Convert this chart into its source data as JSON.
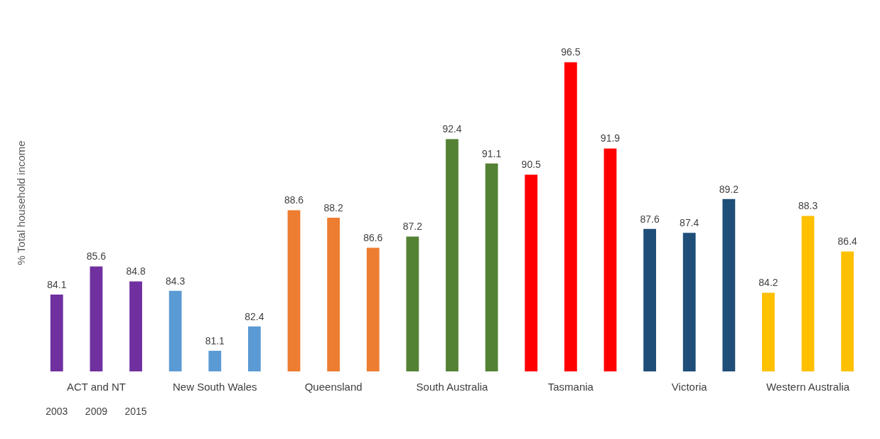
{
  "chart_data": {
    "type": "bar",
    "ylabel": "% Total household income",
    "categories": [
      "ACT and NT",
      "New South Wales",
      "Queensland",
      "South Australia",
      "Tasmania",
      "Victoria",
      "Western Australia"
    ],
    "series": [
      {
        "name": "2003",
        "colors": [
          "#7030a0",
          "#5b9bd5",
          "#ed7d31",
          "#548235",
          "#ff0000",
          "#1f4e79",
          "#ffc000"
        ],
        "values": [
          84.1,
          84.3,
          88.6,
          87.2,
          90.5,
          87.6,
          84.2
        ]
      },
      {
        "name": "2009",
        "colors": [
          "#7030a0",
          "#5b9bd5",
          "#ed7d31",
          "#548235",
          "#ff0000",
          "#1f4e79",
          "#ffc000"
        ],
        "values": [
          85.6,
          81.1,
          88.2,
          92.4,
          96.5,
          87.4,
          88.3
        ]
      },
      {
        "name": "2015",
        "colors": [
          "#7030a0",
          "#5b9bd5",
          "#ed7d31",
          "#548235",
          "#ff0000",
          "#1f4e79",
          "#ffc000"
        ],
        "values": [
          84.8,
          82.4,
          86.6,
          91.1,
          91.9,
          89.2,
          86.4
        ]
      }
    ],
    "tick_labels": "x",
    "data_labels": true,
    "grid": false,
    "legend": false
  }
}
